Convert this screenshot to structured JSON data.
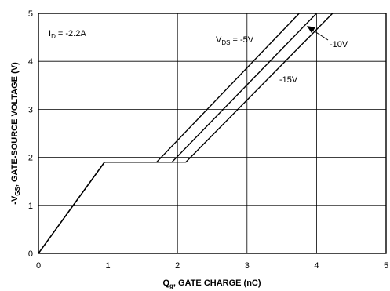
{
  "chart_data": {
    "type": "line",
    "xlabel": {
      "main": "Q",
      "sub": "g",
      "rest": ", GATE CHARGE (nC)"
    },
    "ylabel": {
      "pre": "-V",
      "sub": "GS",
      "rest": ", GATE-SOURCE VOLTAGE (V)"
    },
    "xlim": [
      0,
      5
    ],
    "ylim": [
      0,
      5
    ],
    "xticks": [
      "0",
      "1",
      "2",
      "3",
      "4",
      "5"
    ],
    "yticks": [
      "0",
      "1",
      "2",
      "3",
      "4",
      "5"
    ],
    "grid": true,
    "condition": {
      "pre": "I",
      "sub": "D",
      "rest": " = -2.2A"
    },
    "series": [
      {
        "name": "V_DS = -5V",
        "points": [
          [
            0,
            0
          ],
          [
            0.95,
            1.9
          ],
          [
            1.7,
            1.9
          ],
          [
            3.75,
            5.0
          ]
        ]
      },
      {
        "name": "V_DS = -10V",
        "points": [
          [
            0,
            0
          ],
          [
            0.95,
            1.9
          ],
          [
            1.92,
            1.9
          ],
          [
            4.0,
            5.0
          ]
        ]
      },
      {
        "name": "V_DS = -15V",
        "points": [
          [
            0,
            0
          ],
          [
            0.95,
            1.9
          ],
          [
            2.12,
            1.9
          ],
          [
            4.23,
            5.0
          ]
        ]
      }
    ],
    "annotations": {
      "s5": {
        "pre": "V",
        "sub": "DS",
        "rest": " = -5V"
      },
      "s10": "-10V",
      "s15": "-15V"
    }
  }
}
